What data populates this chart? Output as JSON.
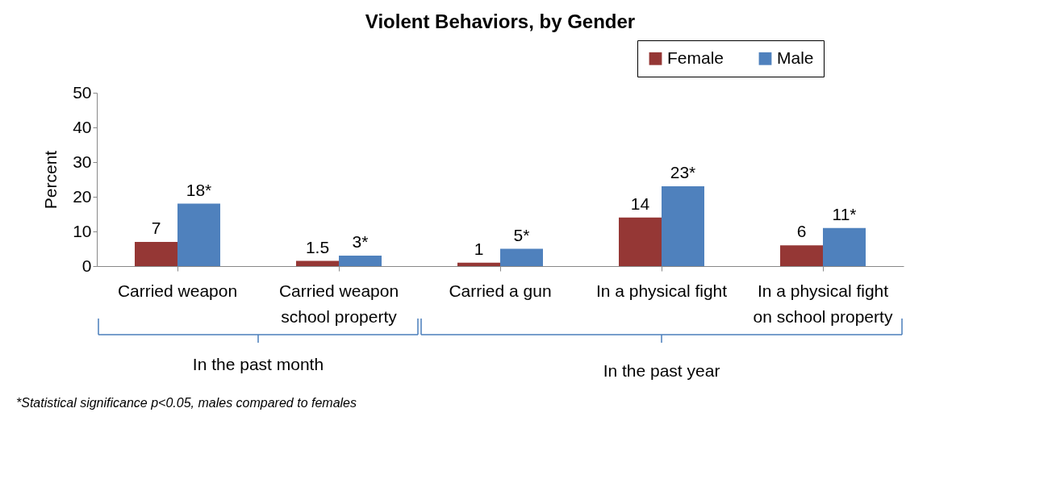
{
  "chart_data": {
    "type": "bar",
    "title": "Violent Behaviors, by Gender",
    "ylabel": "Percent",
    "categories": [
      "Carried weapon",
      "Carried weapon school property",
      "Carried a gun",
      "In a physical fight",
      "In a physical fight on school property"
    ],
    "series": [
      {
        "name": "Female",
        "color": "#953735",
        "values": [
          7,
          1.5,
          1,
          14,
          6
        ],
        "value_labels": [
          "7",
          "1.5",
          "1",
          "14",
          "6"
        ]
      },
      {
        "name": "Male",
        "color": "#4f81bd",
        "values": [
          18,
          3,
          5,
          23,
          11
        ],
        "value_labels": [
          "18*",
          "3*",
          "5*",
          "23*",
          "11*"
        ]
      }
    ],
    "ylim": [
      0,
      50
    ],
    "yticks": [
      0,
      10,
      20,
      30,
      40,
      50
    ],
    "grid": false,
    "legend": "top right",
    "annotations": [
      "In the past month",
      "In the past year",
      "*Statistical significance p<0.05, males compared to females"
    ]
  }
}
